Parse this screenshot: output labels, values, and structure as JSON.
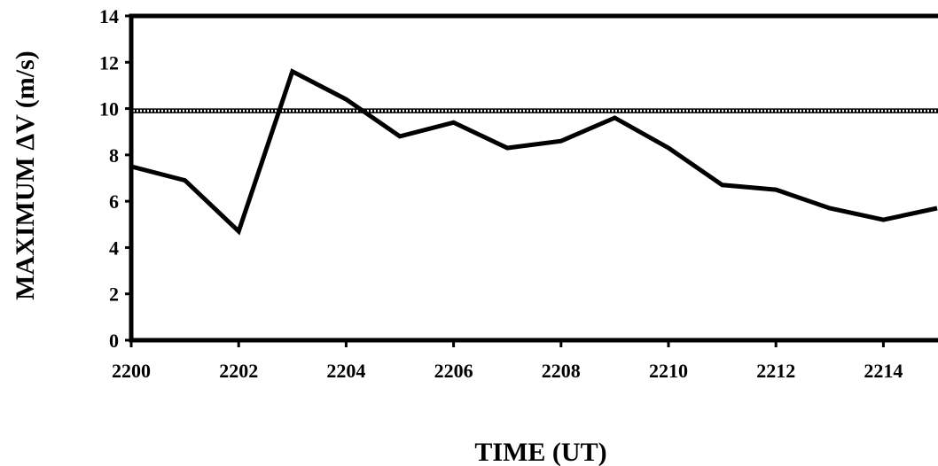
{
  "chart_data": {
    "type": "line",
    "title": "",
    "xlabel": "TIME  (UT)",
    "ylabel": "MAXIMUM  ΔV  (m/s)",
    "x": [
      2200,
      2201,
      2202,
      2203,
      2204,
      2205,
      2206,
      2207,
      2208,
      2209,
      2210,
      2211,
      2212,
      2213,
      2214,
      2215
    ],
    "series": [
      {
        "values": [
          7.5,
          6.9,
          4.7,
          11.6,
          10.4,
          8.8,
          9.4,
          8.3,
          8.6,
          9.6,
          8.3,
          6.7,
          6.5,
          5.7,
          5.2,
          5.7
        ]
      }
    ],
    "reference_line": {
      "y": 9.9,
      "style": "hatched"
    },
    "xlim": [
      2200,
      2215
    ],
    "ylim": [
      0,
      14
    ],
    "x_ticks": [
      "2200",
      "2202",
      "2204",
      "2206",
      "2208",
      "2210",
      "2212",
      "2214"
    ],
    "y_ticks": [
      "0",
      "2",
      "4",
      "6",
      "8",
      "10",
      "12",
      "14"
    ],
    "grid": false,
    "legend": "none"
  }
}
